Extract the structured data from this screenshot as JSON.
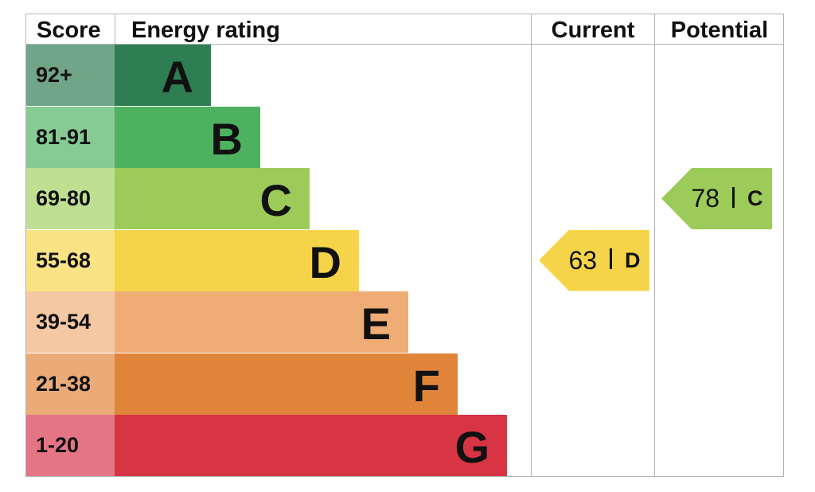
{
  "headers": {
    "score": "Score",
    "energy_rating": "Energy rating",
    "current": "Current",
    "potential": "Potential"
  },
  "bands": [
    {
      "letter": "A",
      "score": "92+",
      "color": "#2f7d52",
      "score_color": "#71a588"
    },
    {
      "letter": "B",
      "score": "81-91",
      "color": "#4eb160",
      "score_color": "#86cb93"
    },
    {
      "letter": "C",
      "score": "69-80",
      "color": "#9ccb5a",
      "score_color": "#bfdf93"
    },
    {
      "letter": "D",
      "score": "55-68",
      "color": "#f6d44a",
      "score_color": "#f9e385"
    },
    {
      "letter": "E",
      "score": "39-54",
      "color": "#efac74",
      "score_color": "#f4c8a2"
    },
    {
      "letter": "F",
      "score": "21-38",
      "color": "#e0843a",
      "score_color": "#ebab78"
    },
    {
      "letter": "G",
      "score": "1-20",
      "color": "#d73444",
      "score_color": "#e57585"
    }
  ],
  "current": {
    "score": "63",
    "letter": "D",
    "color": "#f6d44a"
  },
  "potential": {
    "score": "78",
    "letter": "C",
    "color": "#9ccb5a"
  },
  "chart_data": {
    "type": "bar",
    "categories": [
      "A",
      "B",
      "C",
      "D",
      "E",
      "F",
      "G"
    ],
    "score_ranges": [
      "92+",
      "81-91",
      "69-80",
      "55-68",
      "39-54",
      "21-38",
      "1-20"
    ],
    "current": {
      "value": 63,
      "band": "D"
    },
    "potential": {
      "value": 78,
      "band": "C"
    }
  }
}
